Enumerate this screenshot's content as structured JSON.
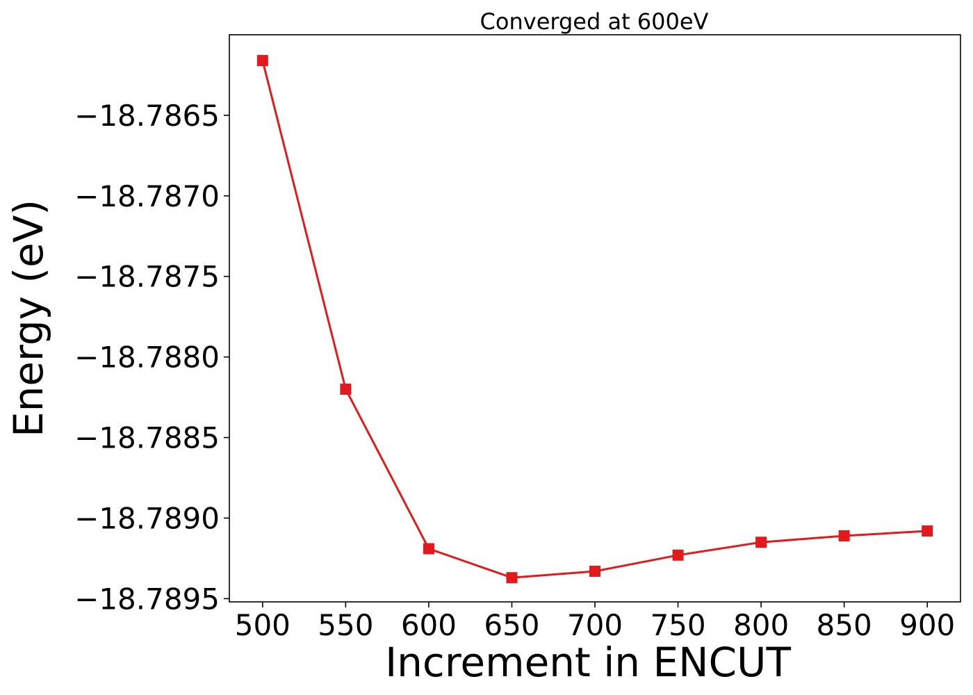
{
  "chart_data": {
    "type": "line",
    "title": "Converged at 600eV",
    "xlabel": "Increment in ENCUT",
    "ylabel": "Energy (eV)",
    "x": [
      500,
      550,
      600,
      650,
      700,
      750,
      800,
      850,
      900
    ],
    "series": [
      {
        "values": [
          -18.78616,
          -18.7882,
          -18.78919,
          -18.78937,
          -18.78933,
          -18.78923,
          -18.78915,
          -18.78911,
          -18.78908
        ],
        "color": "#e31a1c",
        "marker": "square"
      }
    ],
    "xticks": [
      500,
      550,
      600,
      650,
      700,
      750,
      800,
      850,
      900
    ],
    "xtick_labels": [
      "500",
      "550",
      "600",
      "650",
      "700",
      "750",
      "800",
      "850",
      "900"
    ],
    "yticks": [
      -18.7865,
      -18.787,
      -18.7875,
      -18.788,
      -18.7885,
      -18.789,
      -18.7895
    ],
    "ytick_labels": [
      "−18.7865",
      "−18.7870",
      "−18.7875",
      "−18.7880",
      "−18.7885",
      "−18.7890",
      "−18.7895"
    ],
    "xlim": [
      480,
      920
    ],
    "ylim": [
      -18.78952,
      -18.786
    ],
    "grid": false
  }
}
